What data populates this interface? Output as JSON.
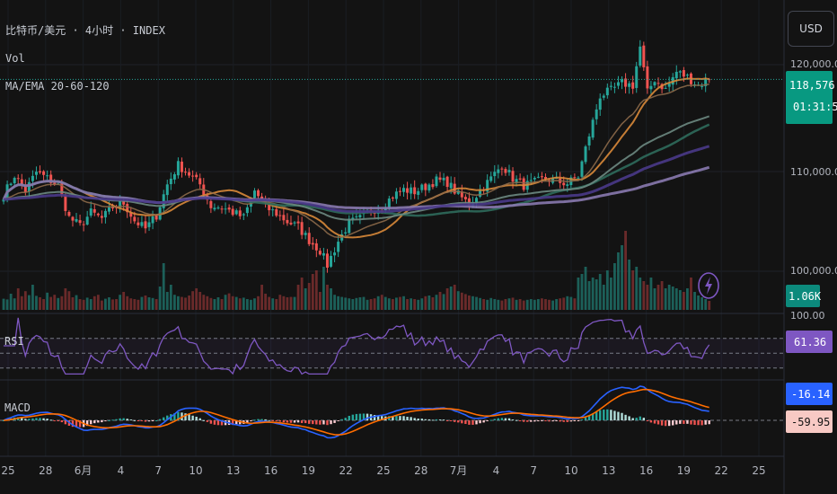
{
  "header": {
    "symbol": "比特币/美元 · 4小时 · INDEX",
    "vol_label": "Vol",
    "ma_label": "MA/EMA 20-60-120"
  },
  "currency_button": "USD",
  "price_axis": {
    "ticks": [
      "120,000.00",
      "110,000.00",
      "100,000.00"
    ],
    "current_price": "118,576.39",
    "countdown": "01:31:50",
    "volume_badge": "1.06K"
  },
  "rsi_panel": {
    "label": "RSI",
    "top_tick": "100.00",
    "value": "61.36"
  },
  "macd_panel": {
    "label": "MACD",
    "value_macd": "-16.14",
    "value_signal": "-59.95"
  },
  "time_axis": {
    "labels": [
      "25",
      "28",
      "6月",
      "4",
      "7",
      "10",
      "13",
      "16",
      "19",
      "22",
      "25",
      "28",
      "7月",
      "4",
      "7",
      "10",
      "13",
      "16",
      "19",
      "22",
      "25"
    ]
  },
  "colors": {
    "background": "#131313",
    "up": "#26a69a",
    "down": "#ef5350",
    "rsi_line": "#7e57c2",
    "macd_line": "#2962ff",
    "signal_line": "#ff6d00",
    "price_badge": "#089981"
  },
  "chart_data": {
    "type": "candlestick",
    "title": "比特币/美元 · 4小时 · INDEX",
    "x_labels": [
      "25",
      "28",
      "6月",
      "4",
      "7",
      "10",
      "13",
      "16",
      "19",
      "22",
      "25",
      "28",
      "7月",
      "4",
      "7",
      "10",
      "13",
      "16",
      "19",
      "22",
      "25"
    ],
    "ylim": [
      98500,
      122500
    ],
    "current_price": 118576.39,
    "price_anchors": [
      [
        0,
        107400
      ],
      [
        3,
        109300
      ],
      [
        6,
        107800
      ],
      [
        9,
        109600
      ],
      [
        12,
        109000
      ],
      [
        15,
        108300
      ],
      [
        18,
        105200
      ],
      [
        21,
        104400
      ],
      [
        24,
        105700
      ],
      [
        27,
        105100
      ],
      [
        30,
        106200
      ],
      [
        33,
        106600
      ],
      [
        36,
        104900
      ],
      [
        39,
        104100
      ],
      [
        42,
        105400
      ],
      [
        45,
        108400
      ],
      [
        48,
        110300
      ],
      [
        51,
        109400
      ],
      [
        54,
        108400
      ],
      [
        57,
        106300
      ],
      [
        60,
        106200
      ],
      [
        63,
        105700
      ],
      [
        66,
        105200
      ],
      [
        69,
        107800
      ],
      [
        72,
        106200
      ],
      [
        75,
        105600
      ],
      [
        78,
        104800
      ],
      [
        81,
        104300
      ],
      [
        84,
        103000
      ],
      [
        87,
        102000
      ],
      [
        89,
        100600
      ],
      [
        92,
        102900
      ],
      [
        95,
        104700
      ],
      [
        98,
        105100
      ],
      [
        101,
        105900
      ],
      [
        104,
        106200
      ],
      [
        107,
        107300
      ],
      [
        110,
        107900
      ],
      [
        113,
        107700
      ],
      [
        116,
        108200
      ],
      [
        119,
        108800
      ],
      [
        122,
        108600
      ],
      [
        125,
        107400
      ],
      [
        128,
        106500
      ],
      [
        131,
        107800
      ],
      [
        134,
        109000
      ],
      [
        137,
        110300
      ],
      [
        140,
        109000
      ],
      [
        143,
        108300
      ],
      [
        146,
        108600
      ],
      [
        149,
        109000
      ],
      [
        152,
        108700
      ],
      [
        155,
        108500
      ],
      [
        158,
        109200
      ],
      [
        161,
        113200
      ],
      [
        164,
        117000
      ],
      [
        167,
        117500
      ],
      [
        170,
        118200
      ],
      [
        173,
        118000
      ],
      [
        175,
        121700
      ],
      [
        177,
        117300
      ],
      [
        179,
        118600
      ],
      [
        182,
        117600
      ],
      [
        185,
        119300
      ],
      [
        188,
        118800
      ],
      [
        191,
        118000
      ],
      [
        194,
        118576
      ]
    ],
    "volume": [
      310,
      290,
      450,
      320,
      600,
      380,
      520,
      410,
      700,
      390,
      350,
      300,
      480,
      360,
      420,
      330,
      380,
      600,
      520,
      350,
      410,
      300,
      280,
      340,
      300,
      380,
      420,
      260,
      310,
      350,
      290,
      300,
      420,
      500,
      380,
      320,
      300,
      280,
      360,
      400,
      350,
      330,
      300,
      650,
      1300,
      500,
      700,
      420,
      380,
      360,
      340,
      400,
      520,
      600,
      500,
      420,
      380,
      330,
      300,
      350,
      300,
      420,
      460,
      380,
      360,
      320,
      340,
      300,
      280,
      320,
      380,
      700,
      450,
      360,
      320,
      300,
      420,
      380,
      350,
      360,
      360,
      700,
      900,
      600,
      750,
      1000,
      1100,
      500,
      1200,
      700,
      600,
      420,
      380,
      360,
      340,
      320,
      300,
      330,
      350,
      360,
      280,
      300,
      320,
      380,
      420,
      360,
      320,
      300,
      340,
      360,
      380,
      300,
      320,
      300,
      280,
      320,
      380,
      400,
      350,
      420,
      500,
      440,
      600,
      650,
      700,
      520,
      480,
      440,
      400,
      380,
      360,
      330,
      300,
      280,
      330,
      300,
      280,
      260,
      300,
      320,
      340,
      280,
      300,
      260,
      280,
      300,
      280,
      300,
      320,
      300,
      280,
      260,
      300,
      320,
      340,
      380,
      360,
      320,
      900,
      1000,
      1200,
      800,
      900,
      850,
      1000,
      700,
      1100,
      900,
      1300,
      1600,
      1800,
      2200,
      1400,
      1100,
      1200,
      900,
      800,
      700,
      900,
      600,
      700,
      800,
      600,
      700,
      650,
      600,
      550,
      500,
      600,
      900,
      500,
      400,
      350,
      300,
      250
    ],
    "rsi_ylim": [
      20,
      100
    ],
    "rsi_bands": [
      70,
      50,
      30
    ],
    "rsi_current": 61.36,
    "macd": {
      "macd_current": -16.14,
      "signal_current": -59.95
    }
  }
}
